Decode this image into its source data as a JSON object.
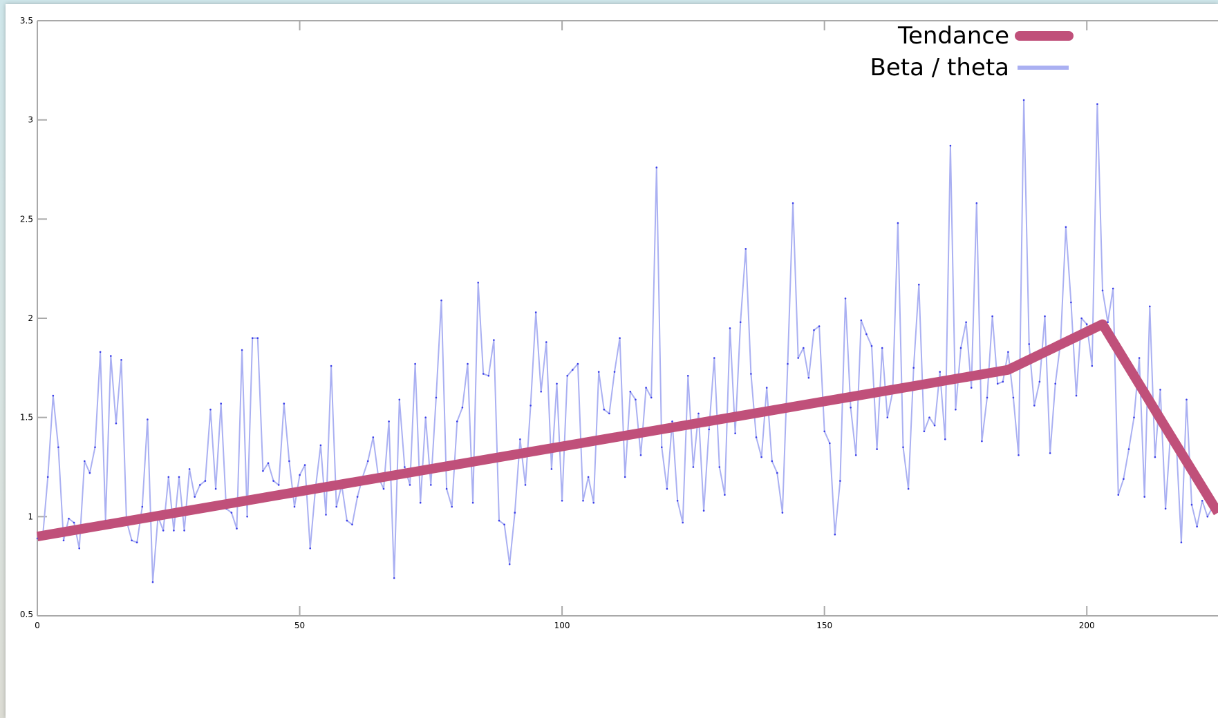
{
  "chart_data": {
    "type": "line",
    "title": "",
    "xlabel": "",
    "ylabel": "",
    "xlim": [
      0,
      225
    ],
    "ylim": [
      0.5,
      3.5
    ],
    "x_ticks": [
      0,
      50,
      100,
      150,
      200
    ],
    "x_tick_labels": [
      "0",
      "50",
      "100",
      "150",
      "200"
    ],
    "y_ticks": [
      0.5,
      1,
      1.5,
      2,
      2.5,
      3,
      3.5
    ],
    "y_tick_labels": [
      "0.5",
      "1",
      "1.5",
      "2",
      "2.5",
      "3",
      "3.5"
    ],
    "grid": false,
    "legend_position": "top-right",
    "series": [
      {
        "name": "Tendance",
        "color": "#c0507a",
        "style": "thick",
        "points": [
          [
            0,
            0.9
          ],
          [
            185,
            1.74
          ],
          [
            203,
            1.97
          ],
          [
            215,
            1.45
          ],
          [
            225,
            1.02
          ]
        ]
      },
      {
        "name": "Beta / theta",
        "color": "#aab0f2",
        "style": "thin",
        "points": [
          [
            0,
            0.89
          ],
          [
            1,
            0.89
          ],
          [
            2,
            1.2
          ],
          [
            3,
            1.61
          ],
          [
            4,
            1.35
          ],
          [
            5,
            0.88
          ],
          [
            6,
            0.99
          ],
          [
            7,
            0.97
          ],
          [
            8,
            0.84
          ],
          [
            9,
            1.28
          ],
          [
            10,
            1.22
          ],
          [
            11,
            1.35
          ],
          [
            12,
            1.83
          ],
          [
            13,
            0.98
          ],
          [
            14,
            1.81
          ],
          [
            15,
            1.47
          ],
          [
            16,
            1.79
          ],
          [
            17,
            0.98
          ],
          [
            18,
            0.88
          ],
          [
            19,
            0.87
          ],
          [
            20,
            1.05
          ],
          [
            21,
            1.49
          ],
          [
            22,
            0.67
          ],
          [
            23,
            1.0
          ],
          [
            24,
            0.93
          ],
          [
            25,
            1.2
          ],
          [
            26,
            0.93
          ],
          [
            27,
            1.2
          ],
          [
            28,
            0.93
          ],
          [
            29,
            1.24
          ],
          [
            30,
            1.1
          ],
          [
            31,
            1.16
          ],
          [
            32,
            1.18
          ],
          [
            33,
            1.54
          ],
          [
            34,
            1.14
          ],
          [
            35,
            1.57
          ],
          [
            36,
            1.04
          ],
          [
            37,
            1.02
          ],
          [
            38,
            0.94
          ],
          [
            39,
            1.84
          ],
          [
            40,
            1.0
          ],
          [
            41,
            1.9
          ],
          [
            42,
            1.9
          ],
          [
            43,
            1.23
          ],
          [
            44,
            1.27
          ],
          [
            45,
            1.18
          ],
          [
            46,
            1.16
          ],
          [
            47,
            1.57
          ],
          [
            48,
            1.28
          ],
          [
            49,
            1.05
          ],
          [
            50,
            1.21
          ],
          [
            51,
            1.26
          ],
          [
            52,
            0.84
          ],
          [
            53,
            1.14
          ],
          [
            54,
            1.36
          ],
          [
            55,
            1.01
          ],
          [
            56,
            1.76
          ],
          [
            57,
            1.05
          ],
          [
            58,
            1.16
          ],
          [
            59,
            0.98
          ],
          [
            60,
            0.96
          ],
          [
            61,
            1.1
          ],
          [
            62,
            1.2
          ],
          [
            63,
            1.28
          ],
          [
            64,
            1.4
          ],
          [
            65,
            1.2
          ],
          [
            66,
            1.14
          ],
          [
            67,
            1.48
          ],
          [
            68,
            0.69
          ],
          [
            69,
            1.59
          ],
          [
            70,
            1.25
          ],
          [
            71,
            1.16
          ],
          [
            72,
            1.77
          ],
          [
            73,
            1.07
          ],
          [
            74,
            1.5
          ],
          [
            75,
            1.16
          ],
          [
            76,
            1.6
          ],
          [
            77,
            2.09
          ],
          [
            78,
            1.14
          ],
          [
            79,
            1.05
          ],
          [
            80,
            1.48
          ],
          [
            81,
            1.55
          ],
          [
            82,
            1.77
          ],
          [
            83,
            1.07
          ],
          [
            84,
            2.18
          ],
          [
            85,
            1.72
          ],
          [
            86,
            1.71
          ],
          [
            87,
            1.89
          ],
          [
            88,
            0.98
          ],
          [
            89,
            0.96
          ],
          [
            90,
            0.76
          ],
          [
            91,
            1.02
          ],
          [
            92,
            1.39
          ],
          [
            93,
            1.16
          ],
          [
            94,
            1.56
          ],
          [
            95,
            2.03
          ],
          [
            96,
            1.63
          ],
          [
            97,
            1.88
          ],
          [
            98,
            1.24
          ],
          [
            99,
            1.67
          ],
          [
            100,
            1.08
          ],
          [
            101,
            1.71
          ],
          [
            102,
            1.74
          ],
          [
            103,
            1.77
          ],
          [
            104,
            1.08
          ],
          [
            105,
            1.2
          ],
          [
            106,
            1.07
          ],
          [
            107,
            1.73
          ],
          [
            108,
            1.54
          ],
          [
            109,
            1.52
          ],
          [
            110,
            1.73
          ],
          [
            111,
            1.9
          ],
          [
            112,
            1.2
          ],
          [
            113,
            1.63
          ],
          [
            114,
            1.59
          ],
          [
            115,
            1.31
          ],
          [
            116,
            1.65
          ],
          [
            117,
            1.6
          ],
          [
            118,
            2.76
          ],
          [
            119,
            1.35
          ],
          [
            120,
            1.14
          ],
          [
            121,
            1.48
          ],
          [
            122,
            1.08
          ],
          [
            123,
            0.97
          ],
          [
            124,
            1.71
          ],
          [
            125,
            1.25
          ],
          [
            126,
            1.52
          ],
          [
            127,
            1.03
          ],
          [
            128,
            1.44
          ],
          [
            129,
            1.8
          ],
          [
            130,
            1.25
          ],
          [
            131,
            1.11
          ],
          [
            132,
            1.95
          ],
          [
            133,
            1.42
          ],
          [
            134,
            1.98
          ],
          [
            135,
            2.35
          ],
          [
            136,
            1.72
          ],
          [
            137,
            1.4
          ],
          [
            138,
            1.3
          ],
          [
            139,
            1.65
          ],
          [
            140,
            1.28
          ],
          [
            141,
            1.22
          ],
          [
            142,
            1.02
          ],
          [
            143,
            1.77
          ],
          [
            144,
            2.58
          ],
          [
            145,
            1.8
          ],
          [
            146,
            1.85
          ],
          [
            147,
            1.7
          ],
          [
            148,
            1.94
          ],
          [
            149,
            1.96
          ],
          [
            150,
            1.43
          ],
          [
            151,
            1.37
          ],
          [
            152,
            0.91
          ],
          [
            153,
            1.18
          ],
          [
            154,
            2.1
          ],
          [
            155,
            1.55
          ],
          [
            156,
            1.31
          ],
          [
            157,
            1.99
          ],
          [
            158,
            1.92
          ],
          [
            159,
            1.86
          ],
          [
            160,
            1.34
          ],
          [
            161,
            1.85
          ],
          [
            162,
            1.5
          ],
          [
            163,
            1.63
          ],
          [
            164,
            2.48
          ],
          [
            165,
            1.35
          ],
          [
            166,
            1.14
          ],
          [
            167,
            1.75
          ],
          [
            168,
            2.17
          ],
          [
            169,
            1.43
          ],
          [
            170,
            1.5
          ],
          [
            171,
            1.46
          ],
          [
            172,
            1.73
          ],
          [
            173,
            1.39
          ],
          [
            174,
            2.87
          ],
          [
            175,
            1.54
          ],
          [
            176,
            1.85
          ],
          [
            177,
            1.98
          ],
          [
            178,
            1.65
          ],
          [
            179,
            2.58
          ],
          [
            180,
            1.38
          ],
          [
            181,
            1.6
          ],
          [
            182,
            2.01
          ],
          [
            183,
            1.67
          ],
          [
            184,
            1.68
          ],
          [
            185,
            1.83
          ],
          [
            186,
            1.6
          ],
          [
            187,
            1.31
          ],
          [
            188,
            3.1
          ],
          [
            189,
            1.87
          ],
          [
            190,
            1.56
          ],
          [
            191,
            1.68
          ],
          [
            192,
            2.01
          ],
          [
            193,
            1.32
          ],
          [
            194,
            1.67
          ],
          [
            195,
            1.88
          ],
          [
            196,
            2.46
          ],
          [
            197,
            2.08
          ],
          [
            198,
            1.61
          ],
          [
            199,
            2.0
          ],
          [
            200,
            1.97
          ],
          [
            201,
            1.76
          ],
          [
            202,
            3.08
          ],
          [
            203,
            2.14
          ],
          [
            204,
            1.98
          ],
          [
            205,
            2.15
          ],
          [
            206,
            1.11
          ],
          [
            207,
            1.19
          ],
          [
            208,
            1.34
          ],
          [
            209,
            1.5
          ],
          [
            210,
            1.8
          ],
          [
            211,
            1.1
          ],
          [
            212,
            2.06
          ],
          [
            213,
            1.3
          ],
          [
            214,
            1.64
          ],
          [
            215,
            1.04
          ],
          [
            216,
            1.44
          ],
          [
            217,
            1.4
          ],
          [
            218,
            0.87
          ],
          [
            219,
            1.59
          ],
          [
            220,
            1.06
          ],
          [
            221,
            0.95
          ],
          [
            222,
            1.08
          ],
          [
            223,
            1.0
          ],
          [
            224,
            1.05
          ],
          [
            225,
            1.05
          ]
        ]
      }
    ]
  }
}
